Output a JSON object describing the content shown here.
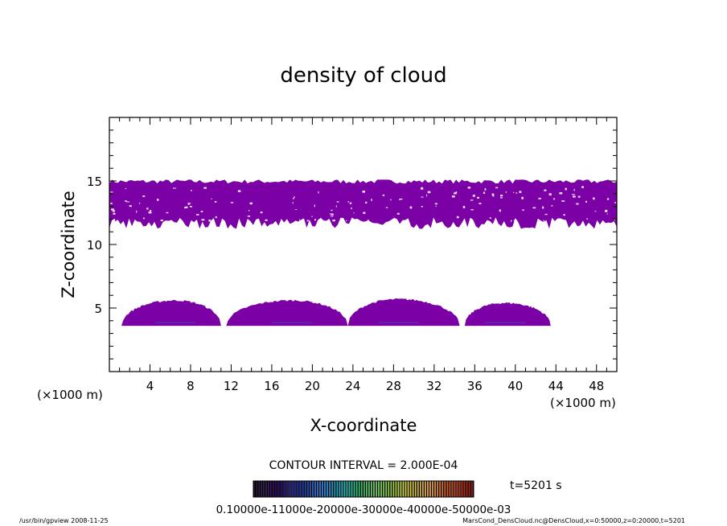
{
  "chart_data": {
    "type": "contour",
    "title": "density of cloud",
    "xlabel": "X-coordinate",
    "ylabel": "Z-coordinate",
    "xunits_label": "(×1000 m)",
    "yunits_label": "(×1000 m)",
    "xlim": [
      0,
      50
    ],
    "ylim": [
      0,
      20
    ],
    "xticks": [
      4,
      8,
      12,
      16,
      20,
      24,
      28,
      32,
      36,
      40,
      44,
      48
    ],
    "yticks": [
      5,
      10,
      15
    ],
    "fill_color": "#7b00a6",
    "core_color": "#5a2bb8",
    "upper_layer": {
      "z_bottom": 11.5,
      "z_top": 15.0
    },
    "lower_cells": [
      {
        "x_start": 1.2,
        "x_end": 11.0,
        "z_base": 3.6,
        "z_top": 5.6,
        "peak_x": 6.5
      },
      {
        "x_start": 11.5,
        "x_end": 23.5,
        "z_base": 3.6,
        "z_top": 5.6,
        "peak_x": 18.0
      },
      {
        "x_start": 23.5,
        "x_end": 34.5,
        "z_base": 3.6,
        "z_top": 5.7,
        "peak_x": 28.5
      },
      {
        "x_start": 35.0,
        "x_end": 43.5,
        "z_base": 3.6,
        "z_top": 5.4,
        "peak_x": 39.0
      }
    ],
    "contour_interval_text": "CONTOUR INTERVAL = 2.000E-04",
    "time_label": "t=5201 s",
    "colorbar_labels_text": "0.10000e-11000e-20000e-30000e-40000e-50000e-03",
    "colorbar_colors": [
      "#10001a",
      "#2a0060",
      "#1e2aa0",
      "#1a6ad0",
      "#20b0c0",
      "#30c060",
      "#80d040",
      "#d0d040",
      "#e0a030",
      "#d05020",
      "#a01010"
    ]
  },
  "footer": {
    "left": "/usr/bin/gpview   2008-11-25",
    "right": "MarsCond_DensCloud.nc@DensCloud,x=0:50000,z=0:20000,t=5201"
  }
}
